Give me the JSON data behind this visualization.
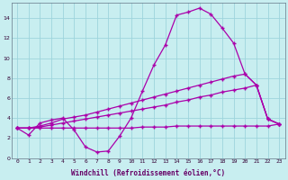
{
  "xlabel": "Windchill (Refroidissement éolien,°C)",
  "background_color": "#c8eef0",
  "line_color": "#aa00aa",
  "grid_color": "#9ed4dc",
  "xlim": [
    -0.5,
    23.5
  ],
  "ylim": [
    0,
    15.5
  ],
  "xticks": [
    0,
    1,
    2,
    3,
    4,
    5,
    6,
    7,
    8,
    9,
    10,
    11,
    12,
    13,
    14,
    15,
    16,
    17,
    18,
    19,
    20,
    21,
    22,
    23
  ],
  "yticks": [
    0,
    2,
    4,
    6,
    8,
    10,
    12,
    14
  ],
  "hours": [
    0,
    1,
    2,
    3,
    4,
    5,
    6,
    7,
    8,
    9,
    10,
    11,
    12,
    13,
    14,
    15,
    16,
    17,
    18,
    19,
    20,
    21,
    22,
    23
  ],
  "curve1": [
    3.0,
    2.3,
    3.5,
    3.8,
    4.0,
    2.8,
    1.1,
    0.6,
    0.7,
    2.2,
    4.0,
    6.7,
    9.3,
    11.3,
    14.3,
    14.6,
    15.0,
    14.4,
    13.0,
    11.5,
    8.4,
    7.3,
    3.9,
    3.4
  ],
  "curve2": [
    3.0,
    3.0,
    3.2,
    3.5,
    3.9,
    4.1,
    4.3,
    4.6,
    4.9,
    5.2,
    5.5,
    5.8,
    6.1,
    6.4,
    6.7,
    7.0,
    7.3,
    7.6,
    7.9,
    8.2,
    8.4,
    7.3,
    3.9,
    3.4
  ],
  "curve3": [
    3.0,
    3.0,
    3.1,
    3.3,
    3.5,
    3.7,
    3.9,
    4.1,
    4.3,
    4.5,
    4.7,
    4.9,
    5.1,
    5.3,
    5.6,
    5.8,
    6.1,
    6.3,
    6.6,
    6.8,
    7.0,
    7.3,
    3.9,
    3.4
  ],
  "curve4": [
    3.0,
    3.0,
    3.0,
    3.0,
    3.0,
    3.0,
    3.0,
    3.0,
    3.0,
    3.0,
    3.0,
    3.1,
    3.1,
    3.1,
    3.2,
    3.2,
    3.2,
    3.2,
    3.2,
    3.2,
    3.2,
    3.2,
    3.2,
    3.4
  ]
}
